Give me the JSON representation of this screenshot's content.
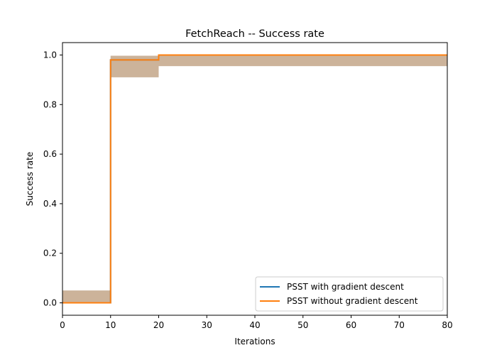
{
  "chart_data": {
    "type": "line",
    "title": "FetchReach -- Success rate",
    "xlabel": "Iterations",
    "ylabel": "Success rate",
    "xlim": [
      0,
      80
    ],
    "ylim": [
      -0.05,
      1.05
    ],
    "xticks": [
      0,
      10,
      20,
      30,
      40,
      50,
      60,
      70,
      80
    ],
    "xtick_labels": [
      "0",
      "10",
      "20",
      "30",
      "40",
      "50",
      "60",
      "70",
      "80"
    ],
    "yticks": [
      0.0,
      0.2,
      0.4,
      0.6,
      0.8,
      1.0
    ],
    "ytick_labels": [
      "0.0",
      "0.2",
      "0.4",
      "0.6",
      "0.8",
      "1.0"
    ],
    "grid": false,
    "legend_position": "lower-right",
    "step_style": "post",
    "series": [
      {
        "name": "PSST with gradient descent",
        "color": "#1f77b4",
        "x": [
          0,
          10,
          20,
          80
        ],
        "y": [
          0.0,
          0.98,
          1.0,
          1.0
        ],
        "band_low": [
          0.0,
          0.91,
          0.955,
          0.955
        ],
        "band_high": [
          0.05,
          0.997,
          1.0,
          1.0
        ]
      },
      {
        "name": "PSST without gradient descent",
        "color": "#ff7f0e",
        "x": [
          0,
          10,
          20,
          80
        ],
        "y": [
          0.0,
          0.98,
          1.0,
          1.0
        ],
        "band_low": [
          0.0,
          0.91,
          0.955,
          0.955
        ],
        "band_high": [
          0.05,
          0.997,
          1.0,
          1.0
        ]
      }
    ]
  }
}
